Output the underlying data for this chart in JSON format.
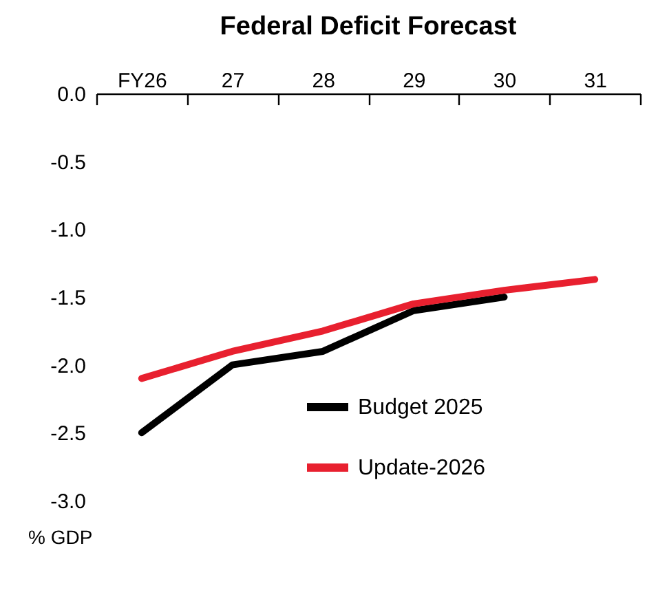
{
  "chart_data": {
    "type": "line",
    "title": "Federal Deficit Forecast",
    "ylabel": "% GDP",
    "categories": [
      "FY26",
      "27",
      "28",
      "29",
      "30",
      "31"
    ],
    "series": [
      {
        "name": "Budget 2025",
        "color": "#000000",
        "values": [
          -2.5,
          -2.0,
          -1.9,
          -1.6,
          -1.5,
          null
        ]
      },
      {
        "name": "Update-2026",
        "color": "#e8202f",
        "values": [
          -2.1,
          -1.9,
          -1.75,
          -1.55,
          -1.45,
          -1.37
        ]
      }
    ],
    "ylim": [
      -3.0,
      0.0
    ],
    "yticks": [
      {
        "value": 0,
        "label": "0.0"
      },
      {
        "value": -0.5,
        "label": "-0.5"
      },
      {
        "value": -1,
        "label": "-1.0"
      },
      {
        "value": -1.5,
        "label": "-1.5"
      },
      {
        "value": -2,
        "label": "-2.0"
      },
      {
        "value": -2.5,
        "label": "-2.5"
      },
      {
        "value": -3,
        "label": "-3.0"
      }
    ],
    "grid": false,
    "legend": "bottom right",
    "line_style": "solid"
  }
}
